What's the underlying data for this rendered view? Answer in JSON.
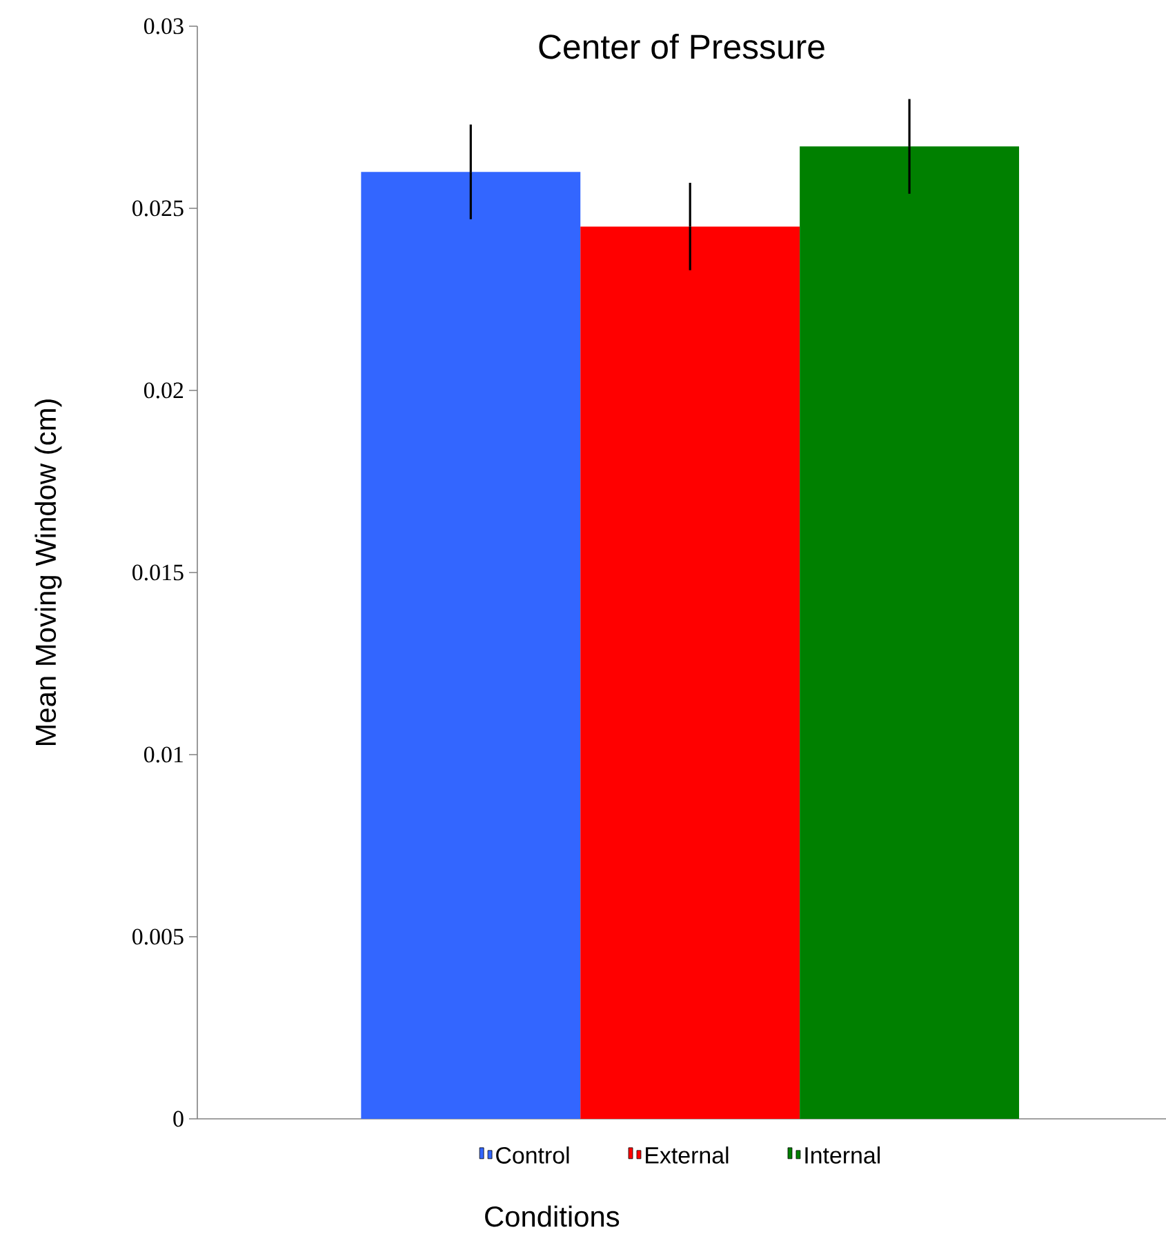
{
  "chart_data": {
    "type": "bar",
    "title": "Center of Pressure",
    "xlabel": "Conditions",
    "ylabel": "Mean Moving Window (cm)",
    "categories": [
      null
    ],
    "series": [
      {
        "name": "Control",
        "color": "#3366ff",
        "values": [
          0.026
        ],
        "errors": [
          0.0013
        ]
      },
      {
        "name": "External",
        "color": "#ff0000",
        "values": [
          0.0245
        ],
        "errors": [
          0.0012
        ]
      },
      {
        "name": "Internal",
        "color": "#008000",
        "values": [
          0.0267
        ],
        "errors": [
          0.0013
        ]
      }
    ],
    "ylim": [
      0,
      0.03
    ],
    "yticks": [
      0,
      0.005,
      0.01,
      0.015,
      0.02,
      0.025,
      0.03
    ],
    "legend": "bottom"
  }
}
